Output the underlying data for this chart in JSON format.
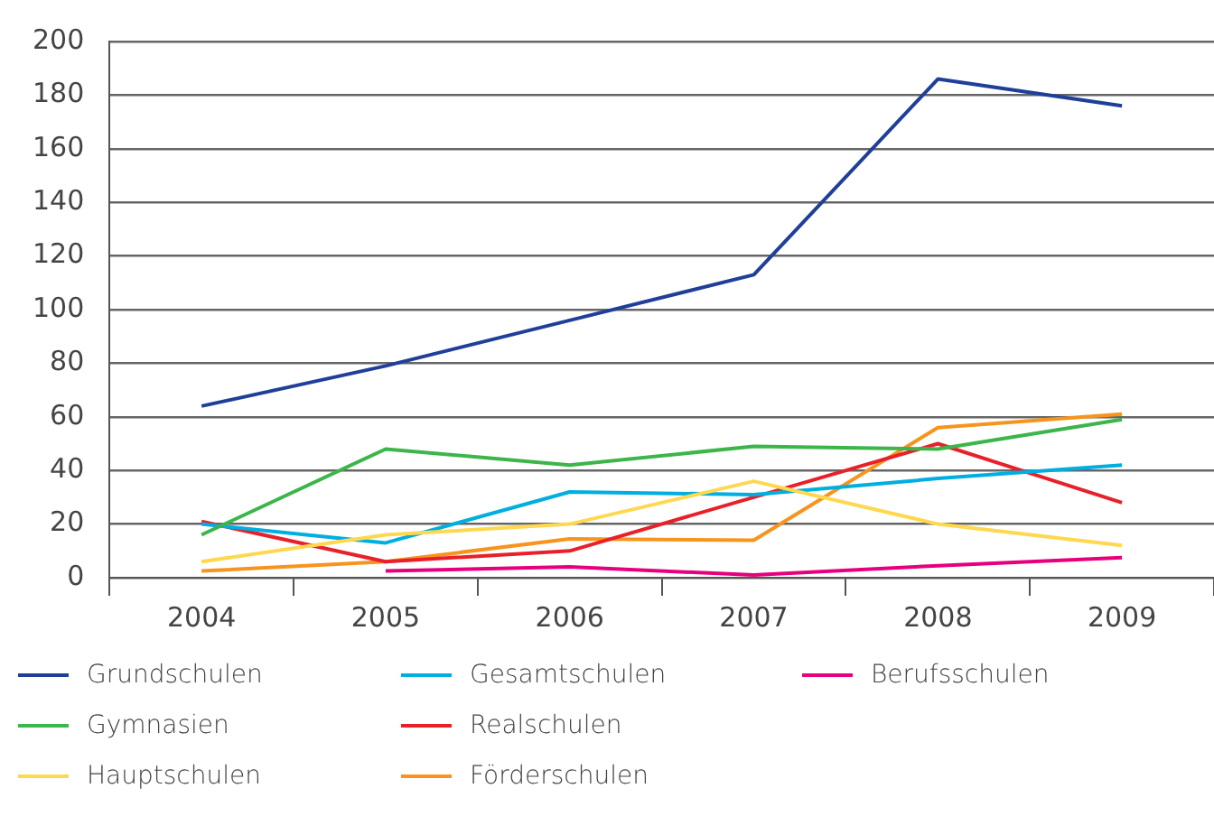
{
  "chart_data": {
    "type": "line",
    "categories": [
      "2004",
      "2005",
      "2006",
      "2007",
      "2008",
      "2009"
    ],
    "series": [
      {
        "name": "Grundschulen",
        "color": "#1f3f99",
        "values": [
          64,
          79,
          96,
          113,
          186,
          176
        ]
      },
      {
        "name": "Gymnasien",
        "color": "#3cb54a",
        "values": [
          16,
          48,
          42,
          49,
          48,
          59
        ]
      },
      {
        "name": "Hauptschulen",
        "color": "#ffd84f",
        "values": [
          6,
          16,
          20,
          36,
          20,
          12
        ]
      },
      {
        "name": "Gesamtschulen",
        "color": "#00aee0",
        "values": [
          20,
          13,
          32,
          31,
          37,
          42
        ]
      },
      {
        "name": "Realschulen",
        "color": "#e8202a",
        "values": [
          21,
          6,
          10,
          30,
          50,
          28
        ]
      },
      {
        "name": "Förderschulen",
        "color": "#f7941d",
        "values": [
          2.5,
          6,
          14.5,
          14,
          56,
          61
        ]
      },
      {
        "name": "Berufsschulen",
        "color": "#e6007e",
        "values": [
          null,
          2.5,
          4,
          1,
          4.5,
          7.5
        ]
      }
    ],
    "ylim": [
      0,
      200
    ],
    "yticks": [
      0,
      20,
      40,
      60,
      80,
      100,
      120,
      140,
      160,
      180,
      200
    ],
    "grid": "y",
    "legend": "bottom",
    "marker": "none",
    "line_style": "solid"
  }
}
